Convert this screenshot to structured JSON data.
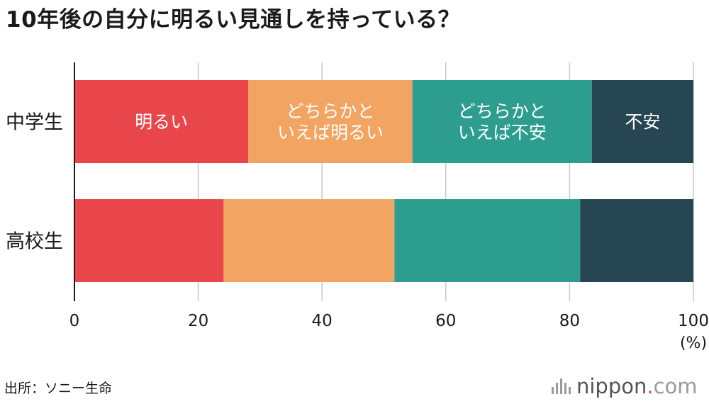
{
  "title": "10年後の自分に明るい見通しを持っている？",
  "source": "出所：ソニー生命",
  "logo": {
    "name": "nippon",
    "dot": ".",
    "tld": "com"
  },
  "chart_data": {
    "type": "bar",
    "orientation": "horizontal",
    "stacked": true,
    "categories": [
      "中学生",
      "高校生"
    ],
    "series": [
      {
        "name": "明るい",
        "color": "#e8464b",
        "values": [
          28.1,
          24.1
        ]
      },
      {
        "name": "どちらかといえば明るい",
        "color": "#f2a462",
        "values": [
          26.5,
          27.6
        ]
      },
      {
        "name": "どちらかといえば不安",
        "color": "#2c9d8e",
        "values": [
          29.0,
          30.0
        ]
      },
      {
        "name": "不安",
        "color": "#264653",
        "values": [
          16.4,
          18.3
        ]
      }
    ],
    "segment_labels": [
      [
        "明るい"
      ],
      [
        "どちらかと",
        "いえば明るい"
      ],
      [
        "どちらかと",
        "いえば不安"
      ],
      [
        "不安"
      ]
    ],
    "xlim": [
      0,
      100
    ],
    "xticks": [
      0,
      20,
      40,
      60,
      80,
      100
    ],
    "xunit": "(%)",
    "grid": true,
    "legend": "none"
  }
}
